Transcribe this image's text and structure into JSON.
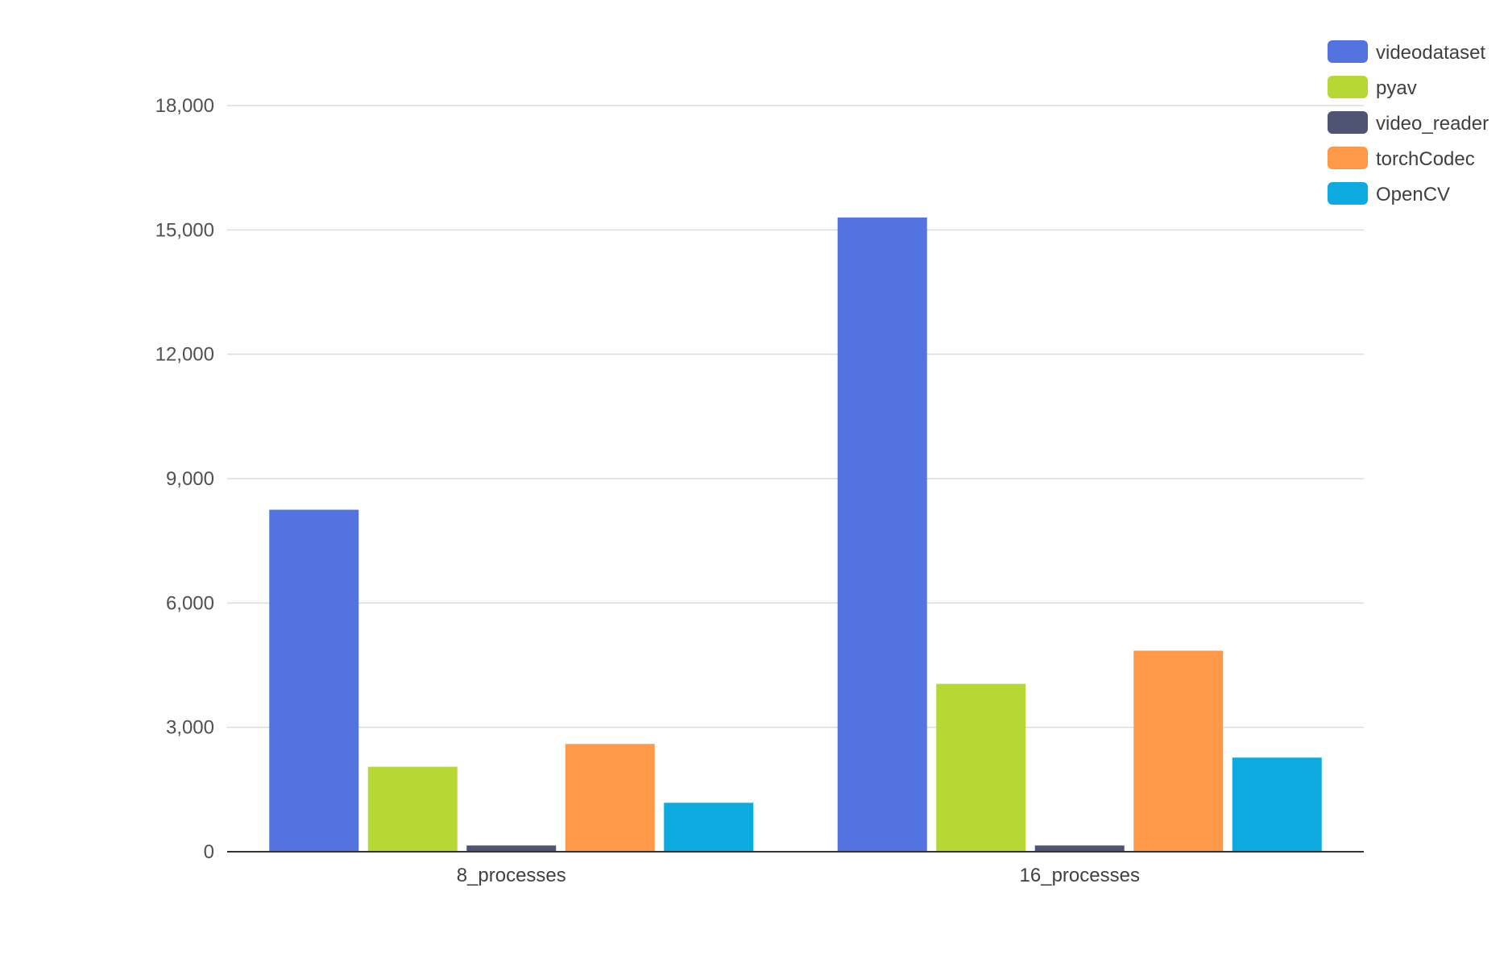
{
  "chart_data": {
    "type": "bar",
    "title": "",
    "xlabel": "",
    "ylabel": "",
    "categories": [
      "8_processes",
      "16_processes"
    ],
    "series": [
      {
        "name": "videodataset",
        "color": "#5273E0",
        "values": [
          8250,
          15300
        ]
      },
      {
        "name": "pyav",
        "color": "#B7D734",
        "values": [
          2050,
          4050
        ]
      },
      {
        "name": "video_reader",
        "color": "#4F5475",
        "values": [
          150,
          150
        ]
      },
      {
        "name": "torchCodec",
        "color": "#FE994A",
        "values": [
          2600,
          4850
        ]
      },
      {
        "name": "OpenCV",
        "color": "#0DAADF",
        "values": [
          1180,
          2270
        ]
      }
    ],
    "ylim": [
      0,
      18000
    ],
    "yticks": [
      0,
      3000,
      6000,
      9000,
      12000,
      15000,
      18000
    ],
    "ytick_labels": [
      "0",
      "3,000",
      "6,000",
      "9,000",
      "12,000",
      "15,000",
      "18,000"
    ],
    "grid": true,
    "legend_position": "top-right"
  }
}
